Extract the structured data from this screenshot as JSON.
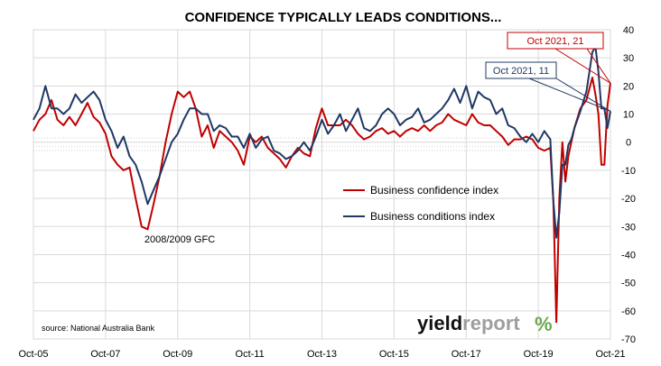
{
  "chart_data": {
    "type": "line",
    "title": "CONFIDENCE TYPICALLY LEADS CONDITIONS...",
    "x_tick_labels": [
      "Oct-05",
      "Oct-07",
      "Oct-09",
      "Oct-11",
      "Oct-13",
      "Oct-15",
      "Oct-17",
      "Oct-19",
      "Oct-21"
    ],
    "x_range": [
      "2005-10",
      "2021-10"
    ],
    "ylim": [
      -70,
      40
    ],
    "y_ticks": [
      40,
      30,
      20,
      10,
      0,
      -10,
      -20,
      -30,
      -40,
      -50,
      -60,
      -70
    ],
    "y_axis_side": "right",
    "grid": true,
    "legend_placement": "center-right inside plot",
    "series": [
      {
        "name": "Business confidence index",
        "color": "#c00000",
        "points": [
          [
            "2005-10",
            4
          ],
          [
            "2005-12",
            8
          ],
          [
            "2006-02",
            10
          ],
          [
            "2006-04",
            15
          ],
          [
            "2006-06",
            8
          ],
          [
            "2006-08",
            6
          ],
          [
            "2006-10",
            9
          ],
          [
            "2006-12",
            6
          ],
          [
            "2007-02",
            10
          ],
          [
            "2007-04",
            14
          ],
          [
            "2007-06",
            9
          ],
          [
            "2007-08",
            7
          ],
          [
            "2007-10",
            3
          ],
          [
            "2007-12",
            -5
          ],
          [
            "2008-02",
            -8
          ],
          [
            "2008-04",
            -10
          ],
          [
            "2008-06",
            -9
          ],
          [
            "2008-08",
            -20
          ],
          [
            "2008-10",
            -30
          ],
          [
            "2008-12",
            -31
          ],
          [
            "2009-02",
            -22
          ],
          [
            "2009-04",
            -12
          ],
          [
            "2009-06",
            0
          ],
          [
            "2009-08",
            10
          ],
          [
            "2009-10",
            18
          ],
          [
            "2009-12",
            16
          ],
          [
            "2010-02",
            18
          ],
          [
            "2010-04",
            12
          ],
          [
            "2010-06",
            2
          ],
          [
            "2010-08",
            6
          ],
          [
            "2010-10",
            -2
          ],
          [
            "2010-12",
            4
          ],
          [
            "2011-02",
            2
          ],
          [
            "2011-04",
            0
          ],
          [
            "2011-06",
            -3
          ],
          [
            "2011-08",
            -8
          ],
          [
            "2011-10",
            2
          ],
          [
            "2011-12",
            0
          ],
          [
            "2012-02",
            2
          ],
          [
            "2012-04",
            -2
          ],
          [
            "2012-06",
            -4
          ],
          [
            "2012-08",
            -6
          ],
          [
            "2012-10",
            -9
          ],
          [
            "2012-12",
            -5
          ],
          [
            "2013-02",
            -2
          ],
          [
            "2013-04",
            -4
          ],
          [
            "2013-06",
            -5
          ],
          [
            "2013-08",
            5
          ],
          [
            "2013-10",
            12
          ],
          [
            "2013-12",
            6
          ],
          [
            "2014-02",
            6
          ],
          [
            "2014-04",
            6
          ],
          [
            "2014-06",
            8
          ],
          [
            "2014-08",
            6
          ],
          [
            "2014-10",
            3
          ],
          [
            "2014-12",
            1
          ],
          [
            "2015-02",
            2
          ],
          [
            "2015-04",
            4
          ],
          [
            "2015-06",
            5
          ],
          [
            "2015-08",
            3
          ],
          [
            "2015-10",
            4
          ],
          [
            "2015-12",
            2
          ],
          [
            "2016-02",
            4
          ],
          [
            "2016-04",
            5
          ],
          [
            "2016-06",
            4
          ],
          [
            "2016-08",
            6
          ],
          [
            "2016-10",
            4
          ],
          [
            "2016-12",
            6
          ],
          [
            "2017-02",
            7
          ],
          [
            "2017-04",
            10
          ],
          [
            "2017-06",
            8
          ],
          [
            "2017-08",
            7
          ],
          [
            "2017-10",
            6
          ],
          [
            "2017-12",
            10
          ],
          [
            "2018-02",
            7
          ],
          [
            "2018-04",
            6
          ],
          [
            "2018-06",
            6
          ],
          [
            "2018-08",
            4
          ],
          [
            "2018-10",
            2
          ],
          [
            "2018-12",
            -1
          ],
          [
            "2019-02",
            1
          ],
          [
            "2019-04",
            1
          ],
          [
            "2019-06",
            2
          ],
          [
            "2019-08",
            1
          ],
          [
            "2019-10",
            -2
          ],
          [
            "2019-12",
            -3
          ],
          [
            "2020-02",
            -2
          ],
          [
            "2020-03",
            -21
          ],
          [
            "2020-04",
            -64
          ],
          [
            "2020-05",
            -20
          ],
          [
            "2020-06",
            0
          ],
          [
            "2020-07",
            -14
          ],
          [
            "2020-08",
            -5
          ],
          [
            "2020-09",
            0
          ],
          [
            "2020-10",
            5
          ],
          [
            "2020-12",
            12
          ],
          [
            "2021-02",
            15
          ],
          [
            "2021-04",
            23
          ],
          [
            "2021-05",
            17
          ],
          [
            "2021-06",
            10
          ],
          [
            "2021-07",
            -8
          ],
          [
            "2021-08",
            -8
          ],
          [
            "2021-09",
            13
          ],
          [
            "2021-10",
            21
          ]
        ]
      },
      {
        "name": "Business conditions index",
        "color": "#1f3864",
        "points": [
          [
            "2005-10",
            8
          ],
          [
            "2005-12",
            12
          ],
          [
            "2006-02",
            20
          ],
          [
            "2006-04",
            12
          ],
          [
            "2006-06",
            12
          ],
          [
            "2006-08",
            10
          ],
          [
            "2006-10",
            12
          ],
          [
            "2006-12",
            17
          ],
          [
            "2007-02",
            14
          ],
          [
            "2007-04",
            16
          ],
          [
            "2007-06",
            18
          ],
          [
            "2007-08",
            15
          ],
          [
            "2007-10",
            8
          ],
          [
            "2007-12",
            4
          ],
          [
            "2008-02",
            -2
          ],
          [
            "2008-04",
            2
          ],
          [
            "2008-06",
            -5
          ],
          [
            "2008-08",
            -8
          ],
          [
            "2008-10",
            -14
          ],
          [
            "2008-12",
            -22
          ],
          [
            "2009-02",
            -17
          ],
          [
            "2009-04",
            -12
          ],
          [
            "2009-06",
            -6
          ],
          [
            "2009-08",
            0
          ],
          [
            "2009-10",
            3
          ],
          [
            "2009-12",
            8
          ],
          [
            "2010-02",
            12
          ],
          [
            "2010-04",
            12
          ],
          [
            "2010-06",
            10
          ],
          [
            "2010-08",
            10
          ],
          [
            "2010-10",
            4
          ],
          [
            "2010-12",
            6
          ],
          [
            "2011-02",
            5
          ],
          [
            "2011-04",
            2
          ],
          [
            "2011-06",
            2
          ],
          [
            "2011-08",
            -2
          ],
          [
            "2011-10",
            3
          ],
          [
            "2011-12",
            -2
          ],
          [
            "2012-02",
            1
          ],
          [
            "2012-04",
            2
          ],
          [
            "2012-06",
            -3
          ],
          [
            "2012-08",
            -4
          ],
          [
            "2012-10",
            -6
          ],
          [
            "2012-12",
            -5
          ],
          [
            "2013-02",
            -3
          ],
          [
            "2013-04",
            0
          ],
          [
            "2013-06",
            -3
          ],
          [
            "2013-08",
            2
          ],
          [
            "2013-10",
            8
          ],
          [
            "2013-12",
            3
          ],
          [
            "2014-02",
            6
          ],
          [
            "2014-04",
            10
          ],
          [
            "2014-06",
            4
          ],
          [
            "2014-08",
            8
          ],
          [
            "2014-10",
            12
          ],
          [
            "2014-12",
            5
          ],
          [
            "2015-02",
            4
          ],
          [
            "2015-04",
            6
          ],
          [
            "2015-06",
            10
          ],
          [
            "2015-08",
            12
          ],
          [
            "2015-10",
            10
          ],
          [
            "2015-12",
            6
          ],
          [
            "2016-02",
            8
          ],
          [
            "2016-04",
            9
          ],
          [
            "2016-06",
            12
          ],
          [
            "2016-08",
            7
          ],
          [
            "2016-10",
            8
          ],
          [
            "2016-12",
            10
          ],
          [
            "2017-02",
            12
          ],
          [
            "2017-04",
            15
          ],
          [
            "2017-06",
            19
          ],
          [
            "2017-08",
            14
          ],
          [
            "2017-10",
            20
          ],
          [
            "2017-12",
            12
          ],
          [
            "2018-02",
            18
          ],
          [
            "2018-04",
            16
          ],
          [
            "2018-06",
            15
          ],
          [
            "2018-08",
            10
          ],
          [
            "2018-10",
            12
          ],
          [
            "2018-12",
            6
          ],
          [
            "2019-02",
            5
          ],
          [
            "2019-04",
            2
          ],
          [
            "2019-06",
            0
          ],
          [
            "2019-08",
            3
          ],
          [
            "2019-10",
            0
          ],
          [
            "2019-12",
            4
          ],
          [
            "2020-02",
            1
          ],
          [
            "2020-03",
            -21
          ],
          [
            "2020-04",
            -34
          ],
          [
            "2020-05",
            -25
          ],
          [
            "2020-06",
            -8
          ],
          [
            "2020-07",
            -8
          ],
          [
            "2020-08",
            -1
          ],
          [
            "2020-09",
            1
          ],
          [
            "2020-10",
            5
          ],
          [
            "2020-12",
            11
          ],
          [
            "2021-02",
            18
          ],
          [
            "2021-04",
            32
          ],
          [
            "2021-05",
            34
          ],
          [
            "2021-06",
            25
          ],
          [
            "2021-07",
            12
          ],
          [
            "2021-08",
            12
          ],
          [
            "2021-09",
            5
          ],
          [
            "2021-10",
            11
          ]
        ]
      }
    ],
    "annotations": [
      {
        "text": "2008/2009 GFC"
      },
      {
        "text_prefix": "Oct 2021, ",
        "value_text": "21",
        "series": "Business confidence index",
        "color": "#c00000"
      },
      {
        "text_prefix": "Oct 2021, ",
        "value_text": "11",
        "series": "Business conditions index",
        "color": "#1f3864"
      }
    ],
    "source_text": "source: National Australia Bank",
    "logo": {
      "text_yield": "yield",
      "text_report": "report",
      "text_pct": "%"
    }
  }
}
